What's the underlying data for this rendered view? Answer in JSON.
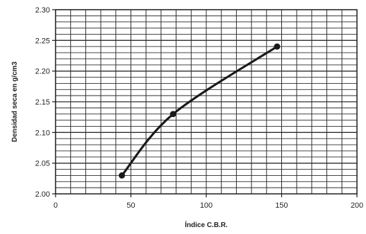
{
  "chart_data": {
    "type": "line",
    "title": "",
    "xlabel": "Índice C.B.R.",
    "ylabel": "Densidad seca en g/cm3",
    "xlim": [
      0,
      200
    ],
    "ylim": [
      2.0,
      2.3
    ],
    "x_ticks": [
      "0",
      "50",
      "100",
      "150",
      "200"
    ],
    "y_ticks": [
      "2.00",
      "2.05",
      "2.10",
      "2.15",
      "2.20",
      "2.25",
      "2.30"
    ],
    "grid": true,
    "legend": "none",
    "series": [
      {
        "color": "#1a1a1a",
        "points": [
          {
            "x": 44,
            "y": 2.03
          },
          {
            "x": 78,
            "y": 2.13
          },
          {
            "x": 147,
            "y": 2.24
          }
        ]
      }
    ]
  }
}
